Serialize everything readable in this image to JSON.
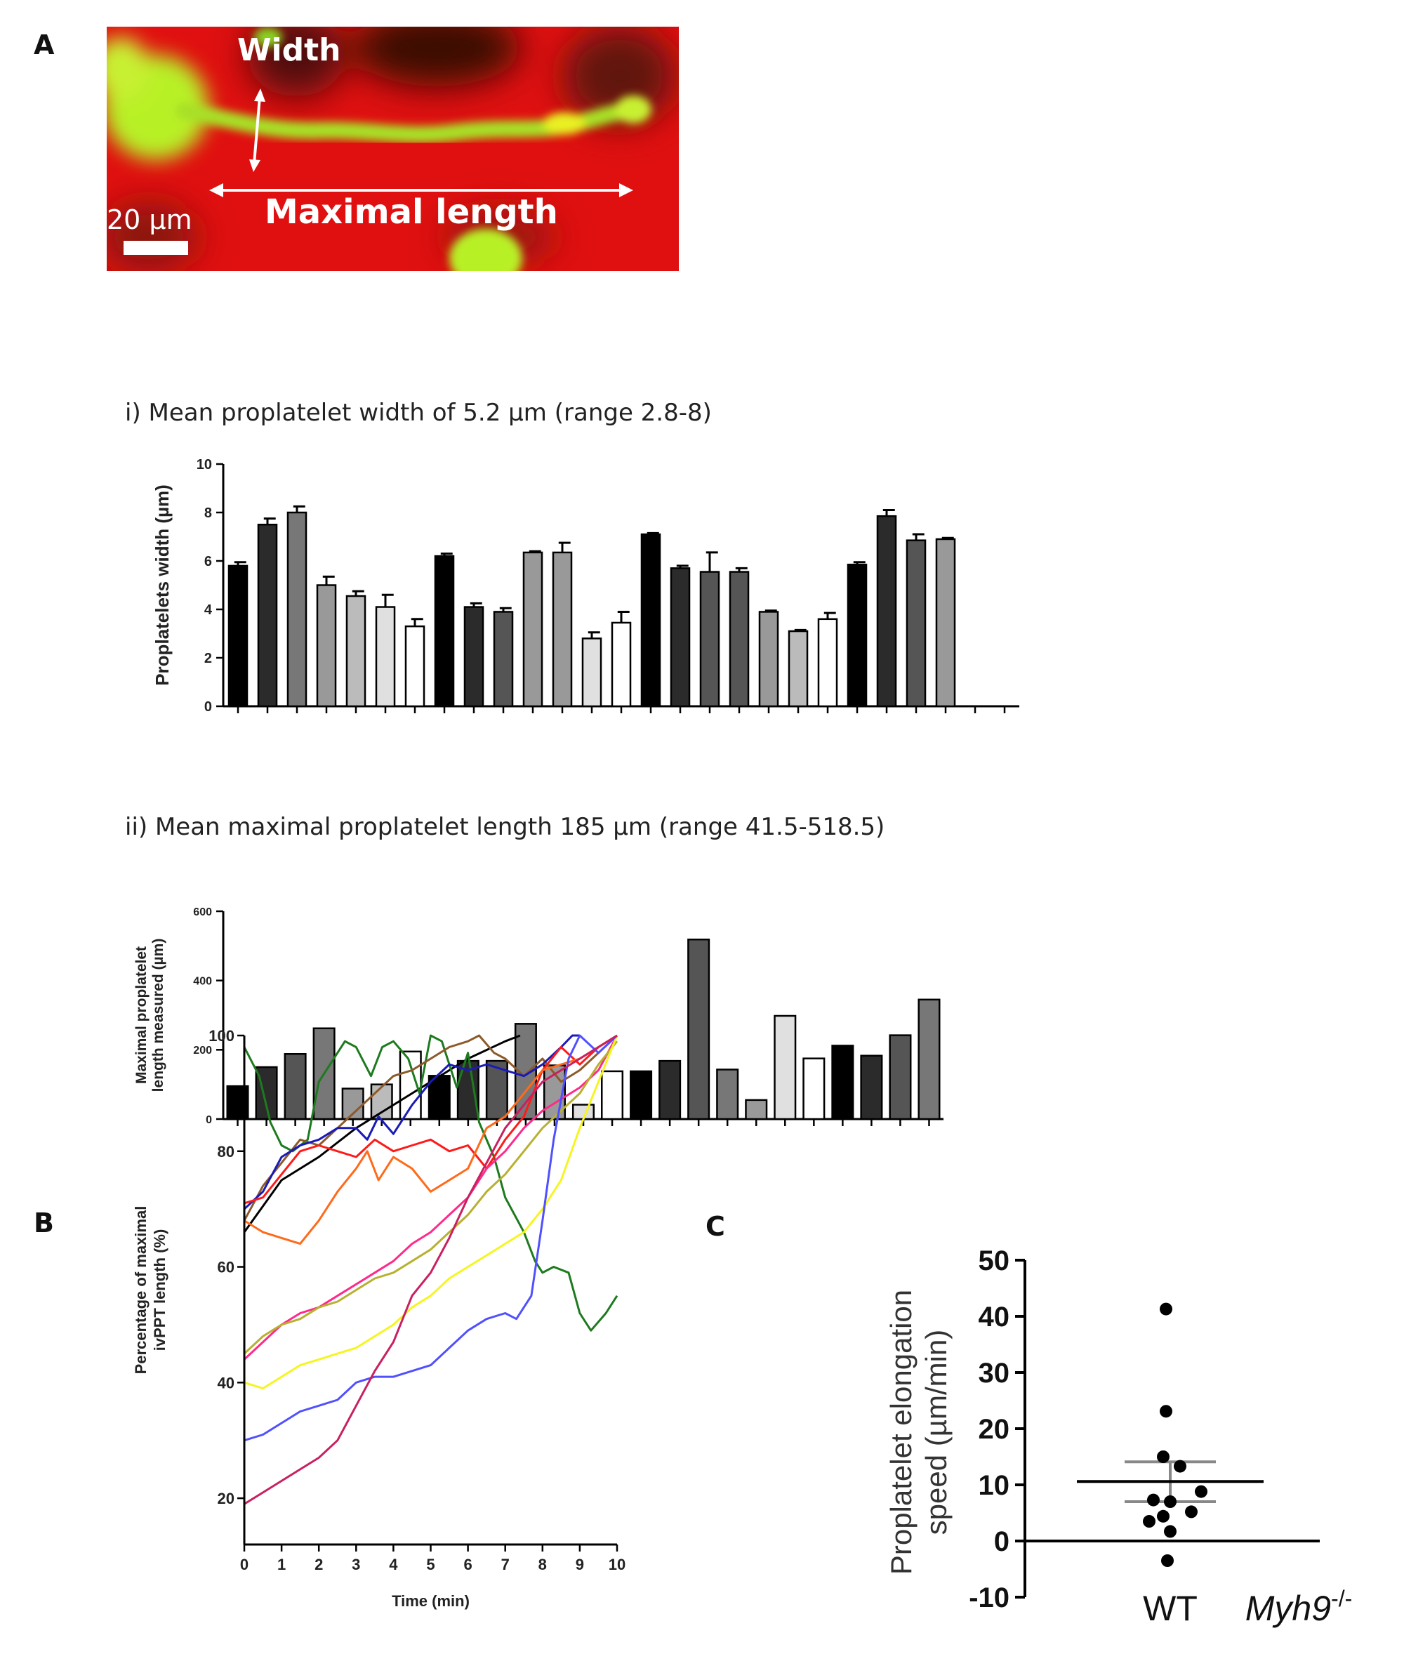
{
  "panels": {
    "a": {
      "label": "A",
      "annotations": {
        "width": "Width",
        "maximal_length": "Maximal length",
        "scale_bar": "20 µm"
      }
    },
    "b": {
      "label": "B"
    },
    "c": {
      "label": "C"
    }
  },
  "subtitles": {
    "width": "i) Mean proplatelet width of 5.2 µm (range 2.8-8)",
    "length": "ii) Mean maximal proplatelet length 185 µm (range 41.5-518.5)"
  },
  "colors": {
    "image_red": "#e01010",
    "image_green": "#b8f028",
    "bar_palette": [
      "#000000",
      "#2b2b2b",
      "#555555",
      "#777777",
      "#999999",
      "#bbbbbb",
      "#e0e0e0",
      "#ffffff"
    ]
  },
  "chart_data": [
    {
      "id": "width",
      "type": "bar",
      "ylabel": "Proplatelets width (µm)",
      "ylim": [
        0,
        10
      ],
      "yticks": [
        0,
        2,
        4,
        6,
        8,
        10
      ],
      "slots": 27,
      "values": [
        5.8,
        7.5,
        8.0,
        5.0,
        4.55,
        4.1,
        3.3,
        6.2,
        4.1,
        3.9,
        6.35,
        6.35,
        2.8,
        3.45,
        7.1,
        5.7,
        5.55,
        5.55,
        3.9,
        3.1,
        3.6,
        5.85,
        7.85,
        6.85,
        6.9
      ],
      "errors": [
        0.15,
        0.25,
        0.25,
        0.35,
        0.2,
        0.5,
        0.3,
        0.1,
        0.15,
        0.15,
        0.05,
        0.4,
        0.25,
        0.45,
        0.05,
        0.1,
        0.8,
        0.15,
        0.05,
        0.05,
        0.25,
        0.1,
        0.25,
        0.25,
        0.05
      ],
      "shades": [
        0,
        1,
        3,
        4,
        5,
        6,
        7,
        0,
        1,
        2,
        4,
        4,
        6,
        7,
        0,
        1,
        2,
        2,
        4,
        5,
        7,
        0,
        1,
        2,
        4
      ]
    },
    {
      "id": "length",
      "type": "bar",
      "ylabel_lines": [
        "Maximal proplatelet",
        "length measured (µm)"
      ],
      "ylim": [
        0,
        600
      ],
      "yticks": [
        0,
        200,
        400,
        600
      ],
      "slots": 25,
      "values": [
        95,
        150,
        188,
        262,
        88,
        100,
        195,
        125,
        168,
        168,
        275,
        155,
        41.5,
        138,
        138,
        168,
        518.5,
        143,
        55,
        298,
        175,
        212,
        183,
        242,
        345
      ],
      "shades": [
        0,
        1,
        2,
        3,
        4,
        5,
        7,
        0,
        1,
        2,
        3,
        4,
        6,
        7,
        0,
        1,
        2,
        3,
        4,
        6,
        7,
        0,
        1,
        2,
        3
      ]
    },
    {
      "id": "elongation",
      "type": "line",
      "xlabel": "Time (min)",
      "ylabel_lines": [
        "Percentage of maximal",
        "ivPPT length (%)"
      ],
      "xlim": [
        0,
        10
      ],
      "ylim": [
        12,
        100
      ],
      "xticks": [
        0,
        1,
        2,
        3,
        4,
        5,
        6,
        7,
        8,
        9,
        10
      ],
      "yticks": [
        20,
        40,
        60,
        80,
        100
      ],
      "series": [
        {
          "name": "black",
          "color": "#000000",
          "x": [
            0,
            1,
            2,
            3,
            4,
            5,
            6,
            7,
            7.4
          ],
          "y": [
            66,
            75,
            79,
            84,
            88,
            92,
            96,
            99,
            100
          ]
        },
        {
          "name": "green",
          "color": "#1e7a1e",
          "x": [
            0,
            0.4,
            0.7,
            1,
            1.3,
            1.7,
            2,
            2.4,
            2.7,
            3,
            3.4,
            3.7,
            4,
            4.4,
            4.7,
            5,
            5.3,
            5.7,
            6,
            6.3,
            6.7,
            7,
            7.5,
            7.8,
            8,
            8.3,
            8.7,
            9,
            9.3,
            9.7,
            10
          ],
          "y": [
            98,
            93,
            85,
            81,
            80,
            82,
            92,
            96,
            99,
            98,
            93,
            98,
            99,
            96,
            90,
            100,
            99,
            91,
            97,
            85,
            79,
            72,
            66,
            61,
            59,
            60,
            59,
            52,
            49,
            52,
            55
          ]
        },
        {
          "name": "brown",
          "color": "#8b5a2b",
          "x": [
            0,
            0.5,
            1,
            1.5,
            2,
            2.5,
            3,
            3.5,
            4,
            4.5,
            5,
            5.5,
            6,
            6.3,
            6.7,
            7,
            7.5,
            8,
            8.5,
            9,
            9.5,
            10
          ],
          "y": [
            68,
            74,
            78,
            82,
            81,
            84,
            87,
            90,
            93,
            94,
            96,
            98,
            99,
            100,
            97,
            96,
            93,
            96,
            92,
            94,
            97,
            100
          ]
        },
        {
          "name": "blue",
          "color": "#1a1ab8",
          "x": [
            0,
            0.5,
            1,
            1.5,
            2,
            2.5,
            3,
            3.3,
            3.6,
            4,
            4.5,
            5,
            5.5,
            6,
            6.5,
            7,
            7.5,
            8,
            8.5,
            8.8,
            9
          ],
          "y": [
            70,
            73,
            79,
            81,
            82,
            84,
            84,
            82,
            86,
            83,
            88,
            92,
            95,
            94,
            95,
            94,
            93,
            95,
            98,
            100,
            100
          ]
        },
        {
          "name": "red",
          "color": "#ff1a1a",
          "x": [
            0,
            0.5,
            1,
            1.5,
            2,
            2.5,
            3,
            3.5,
            4,
            4.5,
            5,
            5.5,
            6,
            6.5,
            7,
            7.5,
            8,
            8.5,
            9,
            9.5,
            10
          ],
          "y": [
            71,
            72,
            76,
            80,
            81,
            80,
            79,
            82,
            80,
            81,
            82,
            80,
            81,
            77,
            82,
            86,
            94,
            98,
            95,
            98,
            100
          ]
        },
        {
          "name": "orange",
          "color": "#ff6a1a",
          "x": [
            0,
            0.5,
            1,
            1.5,
            2,
            2.5,
            3,
            3.3,
            3.6,
            4,
            4.5,
            5,
            5.5,
            6,
            6.5,
            7,
            7.5,
            8,
            8.5,
            9,
            9.5,
            10
          ],
          "y": [
            68,
            66,
            65,
            64,
            68,
            73,
            77,
            80,
            75,
            79,
            77,
            73,
            75,
            77,
            84,
            86,
            90,
            94,
            95,
            96,
            98,
            100
          ]
        },
        {
          "name": "pink",
          "color": "#ff2a8a",
          "x": [
            0,
            0.5,
            1,
            1.5,
            2,
            2.5,
            3,
            3.5,
            4,
            4.5,
            5,
            5.5,
            6,
            6.5,
            7,
            7.5,
            8,
            8.5,
            9,
            9.5,
            10
          ],
          "y": [
            44,
            47,
            50,
            52,
            53,
            55,
            57,
            59,
            61,
            64,
            66,
            69,
            72,
            77,
            80,
            84,
            87,
            89,
            91,
            94,
            100
          ]
        },
        {
          "name": "olive",
          "color": "#b8b030",
          "x": [
            0,
            0.5,
            1,
            1.5,
            2,
            2.5,
            3,
            3.5,
            4,
            4.5,
            5,
            5.5,
            6,
            6.5,
            7,
            7.5,
            8,
            8.5,
            9,
            9.5,
            10
          ],
          "y": [
            45,
            48,
            50,
            51,
            53,
            54,
            56,
            58,
            59,
            61,
            63,
            66,
            69,
            73,
            76,
            80,
            84,
            87,
            90,
            95,
            99
          ]
        },
        {
          "name": "yellow",
          "color": "#f5f520",
          "x": [
            0,
            0.5,
            1,
            1.5,
            2,
            2.5,
            3,
            3.5,
            4,
            4.5,
            5,
            5.5,
            6,
            6.5,
            7,
            7.5,
            8,
            8.5,
            9,
            9.5,
            10
          ],
          "y": [
            40,
            39,
            41,
            43,
            44,
            45,
            46,
            48,
            50,
            53,
            55,
            58,
            60,
            62,
            64,
            66,
            70,
            75,
            84,
            92,
            100
          ]
        },
        {
          "name": "lightblue",
          "color": "#5050ff",
          "x": [
            0,
            0.5,
            1,
            1.5,
            2,
            2.5,
            3,
            3.5,
            4,
            4.5,
            5,
            5.5,
            6,
            6.5,
            7,
            7.3,
            7.7,
            8,
            8.3,
            8.7,
            9,
            9.5,
            10
          ],
          "y": [
            30,
            31,
            33,
            35,
            36,
            37,
            40,
            41,
            41,
            42,
            43,
            46,
            49,
            51,
            52,
            51,
            55,
            68,
            82,
            96,
            100,
            97,
            100
          ]
        },
        {
          "name": "magenta",
          "color": "#c82060",
          "x": [
            0,
            0.5,
            1,
            1.5,
            2,
            2.5,
            3,
            3.5,
            4,
            4.5,
            5,
            5.5,
            6,
            6.5,
            7,
            7.5,
            8,
            8.5,
            9,
            9.5,
            10
          ],
          "y": [
            19,
            21,
            23,
            25,
            27,
            30,
            36,
            42,
            47,
            55,
            59,
            65,
            72,
            78,
            84,
            88,
            92,
            94,
            96,
            98,
            100
          ]
        }
      ]
    },
    {
      "id": "speed",
      "type": "scatter",
      "ylabel_lines": [
        "Proplatelet elongation",
        "speed (µm/min)"
      ],
      "ylim": [
        -10,
        50
      ],
      "yticks": [
        -10,
        0,
        10,
        20,
        30,
        40,
        50
      ],
      "categories": [
        "WT",
        "Myh9"
      ],
      "category_suffix": "-/-",
      "points": [
        {
          "dx": -0.03,
          "y": 41.3
        },
        {
          "dx": -0.03,
          "y": 23.1
        },
        {
          "dx": -0.05,
          "y": 15.0
        },
        {
          "dx": 0.07,
          "y": 13.3
        },
        {
          "dx": -0.12,
          "y": 7.3
        },
        {
          "dx": 0.0,
          "y": 7.0
        },
        {
          "dx": 0.22,
          "y": 8.8
        },
        {
          "dx": 0.15,
          "y": 5.2
        },
        {
          "dx": -0.05,
          "y": 4.4
        },
        {
          "dx": -0.15,
          "y": 3.5
        },
        {
          "dx": 0.0,
          "y": 1.7
        },
        {
          "dx": -0.02,
          "y": -3.5
        }
      ],
      "mean": 10.6,
      "sem_upper": 14.1,
      "sem_lower": 7.0
    }
  ]
}
